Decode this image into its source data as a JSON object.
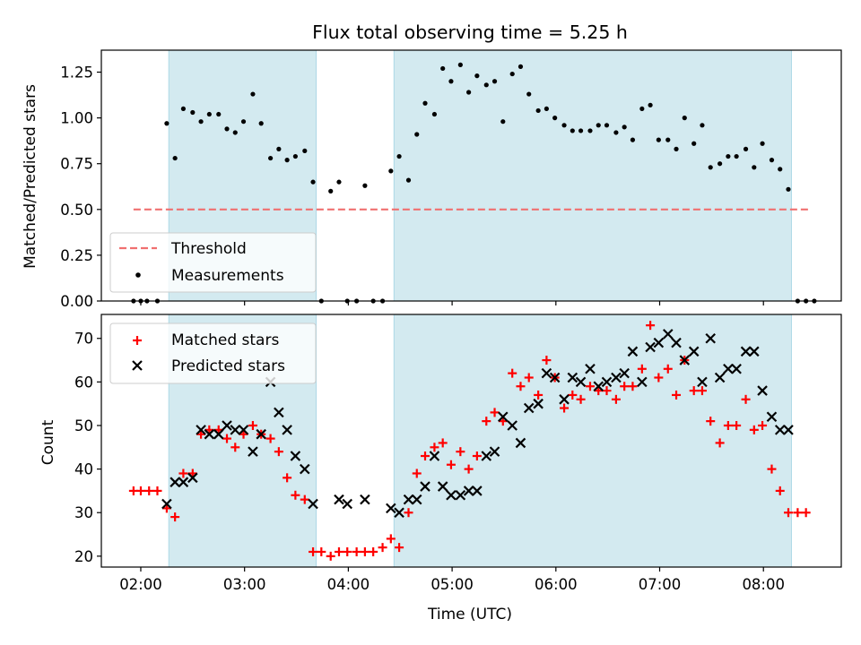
{
  "figure": {
    "title": "Flux total observing time = 5.25 h",
    "xlabel": "Time (UTC)",
    "xticks": [
      {
        "t": 2.0,
        "label": "02:00"
      },
      {
        "t": 3.0,
        "label": "03:00"
      },
      {
        "t": 4.0,
        "label": "04:00"
      },
      {
        "t": 5.0,
        "label": "05:00"
      },
      {
        "t": 6.0,
        "label": "06:00"
      },
      {
        "t": 7.0,
        "label": "07:00"
      },
      {
        "t": 8.0,
        "label": "08:00"
      }
    ],
    "xlim": [
      1.62,
      8.75
    ],
    "shaded_intervals": [
      [
        2.27,
        3.69
      ],
      [
        4.44,
        8.27
      ]
    ],
    "colors": {
      "shade": "#d3eaf0",
      "shade_edge": "#add8e6",
      "threshold": "#f07070",
      "measure": "#000000",
      "matched": "#ff0000",
      "predicted": "#000000"
    }
  },
  "chart_data": [
    {
      "type": "scatter",
      "panel": "top",
      "ylabel": "Matched/Predicted stars",
      "ylim": [
        0,
        1.37
      ],
      "yticks": [
        {
          "v": 0.0,
          "label": "0.00"
        },
        {
          "v": 0.25,
          "label": "0.25"
        },
        {
          "v": 0.5,
          "label": "0.50"
        },
        {
          "v": 0.75,
          "label": "0.75"
        },
        {
          "v": 1.0,
          "label": "1.00"
        },
        {
          "v": 1.25,
          "label": "1.25"
        }
      ],
      "threshold": {
        "label": "Threshold",
        "value": 0.5,
        "x": [
          1.93,
          8.43
        ]
      },
      "legend": {
        "location": "lower-left",
        "entries": [
          "Threshold",
          "Measurements"
        ]
      },
      "series": [
        {
          "name": "Measurements",
          "x": [
            1.93,
            2.0,
            2.06,
            2.16,
            2.25,
            2.33,
            2.41,
            2.5,
            2.58,
            2.66,
            2.75,
            2.83,
            2.91,
            2.99,
            3.08,
            3.16,
            3.25,
            3.33,
            3.41,
            3.49,
            3.58,
            3.66,
            3.74,
            3.83,
            3.91,
            3.99,
            4.08,
            4.16,
            4.24,
            4.33,
            4.41,
            4.49,
            4.58,
            4.66,
            4.74,
            4.83,
            4.91,
            4.99,
            5.08,
            5.16,
            5.24,
            5.33,
            5.41,
            5.49,
            5.58,
            5.66,
            5.74,
            5.83,
            5.91,
            5.99,
            6.08,
            6.16,
            6.24,
            6.33,
            6.41,
            6.49,
            6.58,
            6.66,
            6.74,
            6.83,
            6.91,
            6.99,
            7.08,
            7.16,
            7.24,
            7.33,
            7.41,
            7.49,
            7.58,
            7.66,
            7.74,
            7.83,
            7.91,
            7.99,
            8.08,
            8.16,
            8.24,
            8.33,
            8.41,
            8.49
          ],
          "y": [
            0.0,
            0.0,
            0.0,
            0.0,
            0.97,
            0.78,
            1.05,
            1.03,
            0.98,
            1.02,
            1.02,
            0.94,
            0.92,
            0.98,
            1.13,
            0.97,
            0.78,
            0.83,
            0.77,
            0.79,
            0.82,
            0.65,
            0.0,
            0.6,
            0.65,
            0.0,
            0.0,
            0.63,
            0.0,
            0.0,
            0.71,
            0.79,
            0.66,
            0.91,
            1.08,
            1.02,
            1.27,
            1.2,
            1.29,
            1.14,
            1.23,
            1.18,
            1.2,
            0.98,
            1.24,
            1.28,
            1.13,
            1.04,
            1.05,
            1.0,
            0.96,
            0.93,
            0.93,
            0.93,
            0.96,
            0.96,
            0.92,
            0.95,
            0.88,
            1.05,
            1.07,
            0.88,
            0.88,
            0.83,
            1.0,
            0.86,
            0.96,
            0.73,
            0.75,
            0.79,
            0.79,
            0.83,
            0.73,
            0.86,
            0.77,
            0.72,
            0.61,
            0.0,
            0.0,
            0.0
          ]
        }
      ]
    },
    {
      "type": "scatter",
      "panel": "bottom",
      "ylabel": "Count",
      "ylim": [
        17.5,
        75.5
      ],
      "yticks": [
        {
          "v": 20,
          "label": "20"
        },
        {
          "v": 30,
          "label": "30"
        },
        {
          "v": 40,
          "label": "40"
        },
        {
          "v": 50,
          "label": "50"
        },
        {
          "v": 60,
          "label": "60"
        },
        {
          "v": 70,
          "label": "70"
        }
      ],
      "legend": {
        "location": "upper-left",
        "entries": [
          "Matched stars",
          "Predicted stars"
        ]
      },
      "series": [
        {
          "name": "Matched stars",
          "marker": "+",
          "x": [
            1.93,
            2.0,
            2.08,
            2.16,
            2.25,
            2.33,
            2.41,
            2.5,
            2.58,
            2.66,
            2.75,
            2.83,
            2.91,
            2.99,
            3.08,
            3.16,
            3.25,
            3.33,
            3.41,
            3.49,
            3.58,
            3.66,
            3.74,
            3.83,
            3.91,
            3.99,
            4.08,
            4.16,
            4.24,
            4.33,
            4.41,
            4.49,
            4.58,
            4.66,
            4.74,
            4.83,
            4.91,
            4.99,
            5.08,
            5.16,
            5.24,
            5.33,
            5.41,
            5.49,
            5.58,
            5.66,
            5.74,
            5.83,
            5.91,
            5.99,
            6.08,
            6.16,
            6.24,
            6.33,
            6.41,
            6.49,
            6.58,
            6.66,
            6.74,
            6.83,
            6.91,
            6.99,
            7.08,
            7.16,
            7.24,
            7.33,
            7.41,
            7.49,
            7.58,
            7.66,
            7.74,
            7.83,
            7.91,
            7.99,
            8.08,
            8.16,
            8.24,
            8.33,
            8.41
          ],
          "y": [
            35,
            35,
            35,
            35,
            31,
            29,
            39,
            39,
            48,
            49,
            49,
            47,
            45,
            48,
            50,
            48,
            47,
            44,
            38,
            34,
            33,
            21,
            21,
            20,
            21,
            21,
            21,
            21,
            21,
            22,
            24,
            22,
            30,
            39,
            43,
            45,
            46,
            41,
            44,
            40,
            43,
            51,
            53,
            51,
            62,
            59,
            61,
            57,
            65,
            61,
            54,
            57,
            56,
            59,
            58,
            58,
            56,
            59,
            59,
            63,
            73,
            61,
            63,
            57,
            65,
            58,
            58,
            51,
            46,
            50,
            50,
            56,
            49,
            50,
            40,
            35,
            30,
            30,
            30
          ]
        },
        {
          "name": "Predicted stars",
          "marker": "x",
          "x": [
            2.25,
            2.33,
            2.41,
            2.5,
            2.58,
            2.66,
            2.75,
            2.83,
            2.91,
            2.99,
            3.08,
            3.16,
            3.25,
            3.33,
            3.41,
            3.49,
            3.58,
            3.66,
            3.91,
            3.99,
            4.16,
            4.41,
            4.49,
            4.58,
            4.66,
            4.74,
            4.83,
            4.91,
            4.99,
            5.08,
            5.16,
            5.24,
            5.33,
            5.41,
            5.49,
            5.58,
            5.66,
            5.74,
            5.83,
            5.91,
            5.99,
            6.08,
            6.16,
            6.24,
            6.33,
            6.41,
            6.49,
            6.58,
            6.66,
            6.74,
            6.83,
            6.91,
            6.99,
            7.08,
            7.16,
            7.24,
            7.33,
            7.41,
            7.49,
            7.58,
            7.66,
            7.74,
            7.83,
            7.91,
            7.99,
            8.08,
            8.16,
            8.24
          ],
          "y": [
            32,
            37,
            37,
            38,
            49,
            48,
            48,
            50,
            49,
            49,
            44,
            48,
            60,
            53,
            49,
            43,
            40,
            32,
            33,
            32,
            33,
            31,
            30,
            33,
            33,
            36,
            43,
            36,
            34,
            34,
            35,
            35,
            43,
            44,
            52,
            50,
            46,
            54,
            55,
            62,
            61,
            56,
            61,
            60,
            63,
            59,
            60,
            61,
            62,
            67,
            60,
            68,
            69,
            71,
            69,
            65,
            67,
            60,
            70,
            61,
            63,
            63,
            67,
            67,
            58,
            52,
            49,
            49
          ]
        }
      ]
    }
  ]
}
